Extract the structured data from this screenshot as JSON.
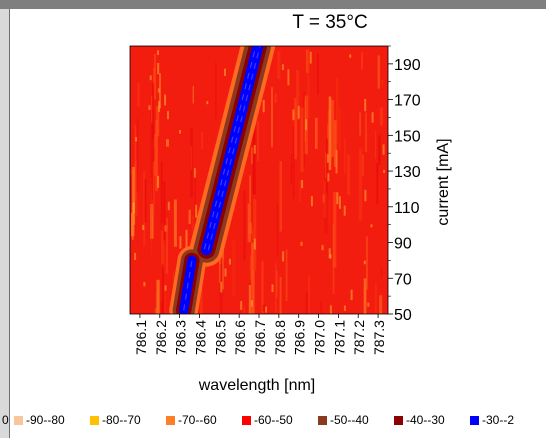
{
  "chart_data": {
    "type": "heatmap",
    "title": "T = 35°C",
    "xlabel": "wavelength [nm]",
    "ylabel": "current [mA]",
    "xlim": [
      786.1,
      787.35
    ],
    "ylim": [
      50,
      200
    ],
    "x_ticks": [
      "786.1",
      "786.2",
      "786.3",
      "786.4",
      "786.5",
      "786.6",
      "786.7",
      "786.8",
      "786.9",
      "787.0",
      "787.1",
      "787.2",
      "787.3"
    ],
    "y_ticks": [
      "50",
      "70",
      "90",
      "110",
      "130",
      "150",
      "170",
      "190"
    ],
    "background_level": "-60--50",
    "peak_trace": {
      "description_points": [
        {
          "current": 52,
          "wavelength": 786.36
        },
        {
          "current": 80,
          "wavelength": 786.4
        },
        {
          "current": 86,
          "wavelength": 786.47
        },
        {
          "current": 200,
          "wavelength": 786.72
        }
      ],
      "core_level": "-30--20",
      "halo_levels": [
        "-40--30",
        "-50--40"
      ]
    },
    "legend": {
      "left_cut_label": "0",
      "items": [
        {
          "label": "-90--80",
          "color": "#f7c79b"
        },
        {
          "label": "-80--70",
          "color": "#ffc000"
        },
        {
          "label": "-70--60",
          "color": "#ff7f27"
        },
        {
          "label": "-60--50",
          "color": "#ff0000"
        },
        {
          "label": "-50--40",
          "color": "#8b3a1f"
        },
        {
          "label": "-40--30",
          "color": "#8b0000"
        },
        {
          "label": "-30--2",
          "color": "#0000ff"
        }
      ]
    }
  }
}
